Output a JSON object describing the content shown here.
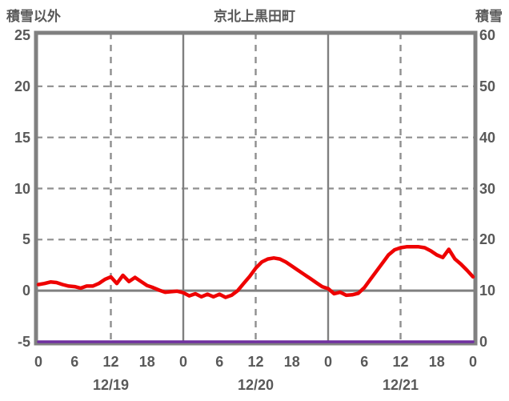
{
  "header": {
    "left_axis_label": "積雪以外",
    "title": "京北上黒田町",
    "right_axis_label": "積雪"
  },
  "colors": {
    "text": "#595959",
    "frame": "#808080",
    "grid": "#8f8f8f",
    "zero_line": "#808080",
    "temperature_line": "#ee0202",
    "snow_line": "#7030a0",
    "background": "#ffffff"
  },
  "chart_data": {
    "type": "line",
    "title": "京北上黒田町",
    "x_axis": {
      "unit": "hour",
      "range_hours": [
        0,
        72
      ],
      "tick_interval_hours": 6,
      "tick_labels": [
        "0",
        "6",
        "12",
        "18",
        "0",
        "6",
        "12",
        "18",
        "0",
        "6",
        "12",
        "18",
        "0"
      ],
      "date_labels": [
        {
          "label": "12/19",
          "center_hour": 12
        },
        {
          "label": "12/20",
          "center_hour": 36
        },
        {
          "label": "12/21",
          "center_hour": 60
        }
      ]
    },
    "left_axis": {
      "label": "積雪以外",
      "range": [
        -5,
        25
      ],
      "ticks": [
        25,
        20,
        15,
        10,
        5,
        0,
        -5
      ]
    },
    "right_axis": {
      "label": "積雪",
      "range": [
        0,
        60
      ],
      "ticks": [
        60,
        50,
        40,
        30,
        20,
        10,
        0
      ]
    },
    "grid": {
      "h_dashed_at_left_values": [
        20,
        15,
        10,
        5
      ],
      "zero_line_left_value": 0,
      "v_solid_at_hours": [
        24,
        48
      ],
      "v_dashed_at_hours": [
        12,
        36,
        60
      ]
    },
    "series": [
      {
        "name": "積雪以外",
        "axis": "left",
        "color": "#ee0202",
        "x_step_hours": 1,
        "values": [
          0.6,
          0.7,
          0.85,
          0.8,
          0.6,
          0.45,
          0.4,
          0.25,
          0.45,
          0.45,
          0.7,
          1.1,
          1.35,
          0.7,
          1.5,
          0.9,
          1.3,
          0.9,
          0.5,
          0.3,
          0.05,
          -0.15,
          -0.1,
          -0.05,
          -0.2,
          -0.5,
          -0.3,
          -0.6,
          -0.35,
          -0.6,
          -0.35,
          -0.65,
          -0.45,
          0.0,
          0.7,
          1.4,
          2.2,
          2.8,
          3.1,
          3.2,
          3.1,
          2.8,
          2.4,
          2.0,
          1.6,
          1.2,
          0.8,
          0.4,
          0.2,
          -0.3,
          -0.15,
          -0.45,
          -0.4,
          -0.25,
          0.3,
          1.1,
          1.9,
          2.7,
          3.5,
          4.0,
          4.2,
          4.3,
          4.3,
          4.3,
          4.2,
          3.9,
          3.5,
          3.25,
          4.05,
          3.1,
          2.6,
          2.0,
          1.35
        ]
      },
      {
        "name": "積雪",
        "axis": "right",
        "color": "#7030a0",
        "x_step_hours": 36,
        "values": [
          0,
          0,
          0
        ]
      }
    ]
  }
}
